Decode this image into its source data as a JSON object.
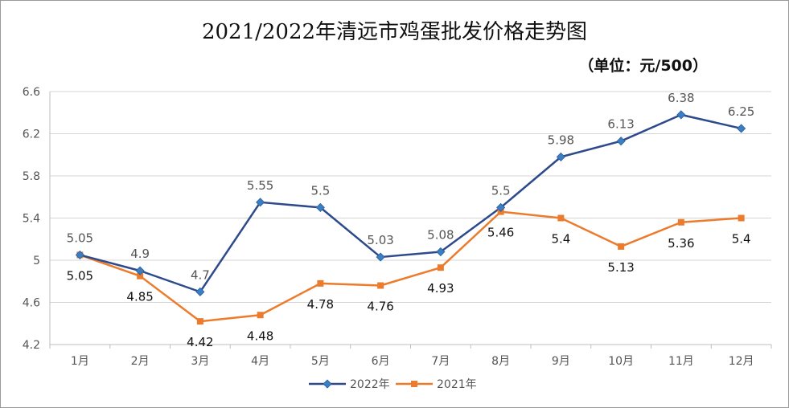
{
  "chart_data": {
    "type": "line",
    "title": "2021/2022年清远市鸡蛋批发价格走势图",
    "unit_note": "（单位：元/500）",
    "categories": [
      "1月",
      "2月",
      "3月",
      "4月",
      "5月",
      "6月",
      "7月",
      "8月",
      "9月",
      "10月",
      "11月",
      "12月"
    ],
    "ylim": [
      4.2,
      6.6
    ],
    "yticks": [
      "4.2",
      "4.6",
      "5",
      "5.4",
      "5.8",
      "6.2",
      "6.6"
    ],
    "grid": true,
    "legend_position": "bottom",
    "series": [
      {
        "name": "2022年",
        "color": "#2e4a8c",
        "marker_color": "#3a7ec4",
        "marker": "diamond",
        "values": [
          5.05,
          4.9,
          4.7,
          5.55,
          5.5,
          5.03,
          5.08,
          5.5,
          5.98,
          6.13,
          6.38,
          6.25
        ],
        "labels": [
          "5.05",
          "4.9",
          "4.7",
          "5.55",
          "5.5",
          "5.03",
          "5.08",
          "5.5",
          "5.98",
          "6.13",
          "6.38",
          "6.25"
        ],
        "label_position": "above"
      },
      {
        "name": "2021年",
        "color": "#ec7b2b",
        "marker_color": "#ec7b2b",
        "marker": "square",
        "values": [
          5.05,
          4.85,
          4.42,
          4.48,
          4.78,
          4.76,
          4.93,
          5.46,
          5.4,
          5.13,
          5.36,
          5.4
        ],
        "labels": [
          "5.05",
          "4.85",
          "4.42",
          "4.48",
          "4.78",
          "4.76",
          "4.93",
          "5.46",
          "5.4",
          "5.13",
          "5.36",
          "5.4"
        ],
        "label_position": "below"
      }
    ]
  }
}
